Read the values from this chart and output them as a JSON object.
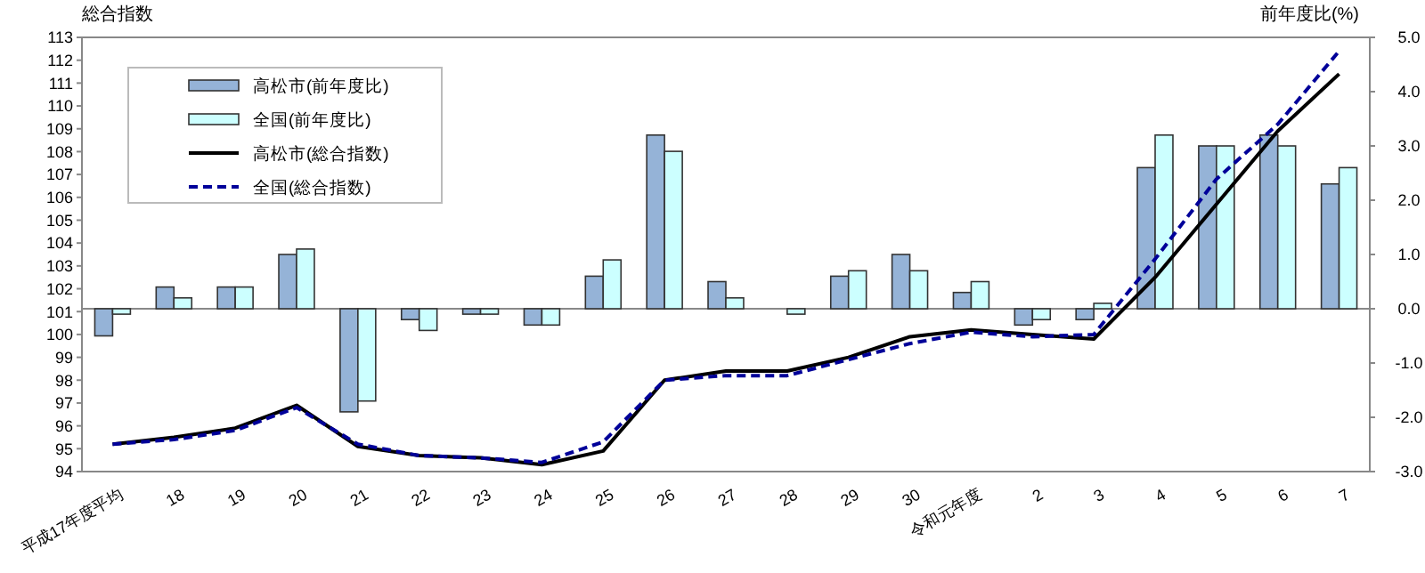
{
  "chart_data": {
    "type": "bar",
    "xlabel": null,
    "ylabel": "総合指数",
    "y2label": "前年度比(%)",
    "categories": [
      "平成17年度平均",
      "18",
      "19",
      "20",
      "21",
      "22",
      "23",
      "24",
      "25",
      "26",
      "27",
      "28",
      "29",
      "30",
      "令和元年度",
      "2",
      "3",
      "4",
      "5",
      "6",
      "7"
    ],
    "series": [
      {
        "name": "高松市(前年度比)",
        "axis": "y2",
        "color": "#95b3d7",
        "values": [
          -0.5,
          0.4,
          0.4,
          1.0,
          -1.9,
          -0.2,
          -0.1,
          -0.3,
          0.6,
          3.2,
          0.5,
          0.0,
          0.6,
          1.0,
          0.3,
          -0.3,
          -0.2,
          2.6,
          3.0,
          3.2,
          2.3
        ]
      },
      {
        "name": "全国(前年度比)",
        "axis": "y2",
        "color": "#ccffff",
        "values": [
          -0.1,
          0.2,
          0.4,
          1.1,
          -1.7,
          -0.4,
          -0.1,
          -0.3,
          0.9,
          2.9,
          0.2,
          -0.1,
          0.7,
          0.7,
          0.5,
          -0.2,
          0.1,
          3.2,
          3.0,
          3.0,
          2.6
        ]
      },
      {
        "name": "高松市(総合指数)",
        "type": "line",
        "axis": "y",
        "color": "#000000",
        "line_style": "solid",
        "values": [
          95.2,
          95.5,
          95.9,
          96.9,
          95.1,
          94.7,
          94.6,
          94.3,
          94.9,
          98.0,
          98.4,
          98.4,
          99.0,
          99.9,
          100.2,
          100.0,
          99.8,
          102.5,
          105.7,
          108.9,
          111.4
        ]
      },
      {
        "name": "全国(総合指数)",
        "type": "line",
        "axis": "y",
        "color": "#000099",
        "line_style": "dashed",
        "values": [
          95.2,
          95.4,
          95.8,
          96.8,
          95.2,
          94.7,
          94.6,
          94.4,
          95.3,
          98.0,
          98.2,
          98.2,
          98.9,
          99.6,
          100.1,
          99.9,
          100.0,
          103.3,
          106.8,
          109.2,
          112.4
        ]
      }
    ],
    "ylim": [
      94,
      113
    ],
    "yticks": [
      94,
      95,
      96,
      97,
      98,
      99,
      100,
      101,
      102,
      103,
      104,
      105,
      106,
      107,
      108,
      109,
      110,
      111,
      112,
      113
    ],
    "y2lim": [
      -3,
      5
    ],
    "y2ticks": [
      {
        "value": -3,
        "label": "-3.0"
      },
      {
        "value": -2,
        "label": "-2.0"
      },
      {
        "value": -1,
        "label": "-1.0"
      },
      {
        "value": 0,
        "label": "0.0"
      },
      {
        "value": 1,
        "label": "1.0"
      },
      {
        "value": 2,
        "label": "2.0"
      },
      {
        "value": 3,
        "label": "3.0"
      },
      {
        "value": 4,
        "label": "4.0"
      },
      {
        "value": 5,
        "label": "5.0"
      }
    ],
    "ref_lines": [
      {
        "axis": "y2",
        "value": 0,
        "color": "#888888"
      }
    ],
    "legend": "top left",
    "marker": "none"
  }
}
